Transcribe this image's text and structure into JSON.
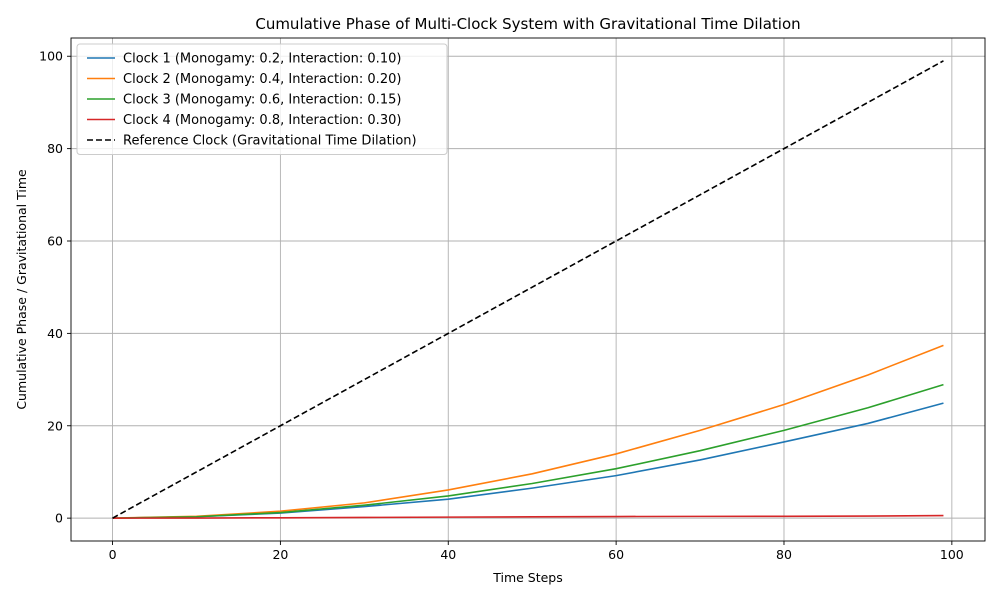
{
  "chart_data": {
    "type": "line",
    "title": "Cumulative Phase of Multi-Clock System with Gravitational Time Dilation",
    "xlabel": "Time Steps",
    "ylabel": "Cumulative Phase / Gravitational Time",
    "xlim": [
      -4.95,
      103.95
    ],
    "ylim": [
      -4.95,
      103.95
    ],
    "x_ticks": [
      0,
      20,
      40,
      60,
      80,
      100
    ],
    "y_ticks": [
      0,
      20,
      40,
      60,
      80,
      100
    ],
    "x_tick_labels": [
      "0",
      "20",
      "40",
      "60",
      "80",
      "100"
    ],
    "y_tick_labels": [
      "0",
      "20",
      "40",
      "60",
      "80",
      "100"
    ],
    "grid": true,
    "legend_position": "top-left",
    "x": [
      0,
      10,
      20,
      30,
      40,
      50,
      60,
      70,
      80,
      90,
      99
    ],
    "series": [
      {
        "name": "Clock 1 (Monogamy: 0.2, Interaction: 0.10)",
        "color": "#1f77b4",
        "dash": "solid",
        "values": [
          0,
          0.3,
          1.1,
          2.5,
          4.1,
          6.5,
          9.2,
          12.6,
          16.5,
          20.5,
          24.9
        ]
      },
      {
        "name": "Clock 2 (Monogamy: 0.4, Interaction: 0.20)",
        "color": "#ff7f0e",
        "dash": "solid",
        "values": [
          0,
          0.4,
          1.5,
          3.3,
          6.1,
          9.6,
          13.9,
          19.0,
          24.6,
          31.0,
          37.4
        ]
      },
      {
        "name": "Clock 3 (Monogamy: 0.6, Interaction: 0.15)",
        "color": "#2ca02c",
        "dash": "solid",
        "values": [
          0,
          0.3,
          1.2,
          2.8,
          4.8,
          7.5,
          10.7,
          14.6,
          19.0,
          23.9,
          28.9
        ]
      },
      {
        "name": "Clock 4 (Monogamy: 0.8, Interaction: 0.30)",
        "color": "#d62728",
        "dash": "solid",
        "values": [
          0,
          0.02,
          0.08,
          0.15,
          0.22,
          0.28,
          0.35,
          0.38,
          0.4,
          0.45,
          0.55
        ]
      },
      {
        "name": "Reference Clock (Gravitational Time Dilation)",
        "color": "#000000",
        "dash": "dashed",
        "values": [
          0,
          10,
          20,
          30,
          40,
          50,
          60,
          70,
          80,
          90,
          99
        ]
      }
    ]
  }
}
